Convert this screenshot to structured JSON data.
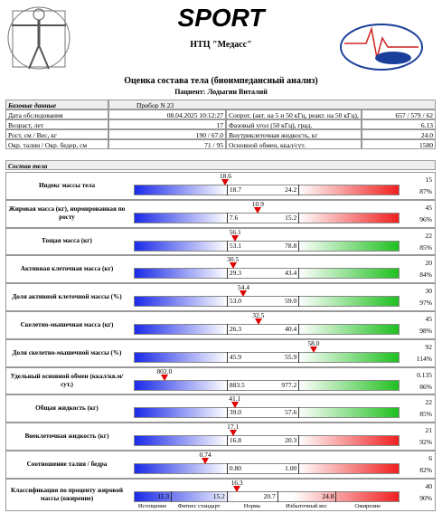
{
  "header": {
    "brand": "SPORT",
    "company": "НТЦ \"Медасс\"",
    "title": "Оценка состава тела (биоимпедансный анализ)",
    "patient": "Пациент: Лодыгин Виталий"
  },
  "base": {
    "title": "Базовые данные",
    "device": "Прибор N 23",
    "rows": [
      [
        "Дата обследования",
        "08.04.2025 10:12:27",
        "Сопрот. (акт. на 5 и 50 кГц, реакт. на 50 кГц), Ом",
        "657 / 579 / 62"
      ],
      [
        "Возраст, лет",
        "17",
        "Фазовый угол (50 кГц), град.",
        "6.13"
      ],
      [
        "Рост, см / Вес, кг",
        "190 / 67.0",
        "Внутриклеточная жидкость, кг",
        "24.0"
      ],
      [
        "Окр. талии / Окр. бедер, см",
        "71 / 95",
        "Основной обмен, ккал/сут.",
        "1580"
      ]
    ]
  },
  "composition": {
    "title": "Состав тела",
    "rows": [
      {
        "label": "Индекс массы тела",
        "value": "18.6",
        "low": "18.7",
        "high": "24.2",
        "top": "15",
        "bottom": "87%",
        "color": "#f02020"
      },
      {
        "label": "Жировая масса (кг), нормированная по росту",
        "value": "10.9",
        "low": "7.6",
        "high": "15.2",
        "top": "45",
        "bottom": "96%",
        "color": "#f02020"
      },
      {
        "label": "Тощая масса (кг)",
        "value": "56.1",
        "low": "53.1",
        "high": "78.8",
        "top": "22",
        "bottom": "85%",
        "color": "#20c020"
      },
      {
        "label": "Активная клеточная масса (кг)",
        "value": "30.5",
        "low": "29.3",
        "high": "43.4",
        "top": "20",
        "bottom": "84%",
        "color": "#20c020"
      },
      {
        "label": "Доля активной клеточной массы (%)",
        "value": "54.4",
        "low": "53.0",
        "high": "59.0",
        "top": "30",
        "bottom": "97%",
        "color": "#20c020"
      },
      {
        "label": "Скелетно-мышечная масса (кг)",
        "value": "32.5",
        "low": "26.3",
        "high": "40.4",
        "top": "45",
        "bottom": "98%",
        "color": "#20c020"
      },
      {
        "label": "Доля скелетно-мышечной массы (%)",
        "value": "58.0",
        "low": "45.9",
        "high": "55.9",
        "top": "92",
        "bottom": "114%",
        "color": "#20c020"
      },
      {
        "label": "Удельный основной обмен (ккал/кв.м/сут.)",
        "value": "802.0",
        "low": "883.5",
        "high": "977.2",
        "top": "0.135",
        "bottom": "86%",
        "color": "#20c020"
      },
      {
        "label": "Общая жидкость (кг)",
        "value": "41.1",
        "low": "39.0",
        "high": "57.6",
        "top": "22",
        "bottom": "85%",
        "color": "#20c020"
      },
      {
        "label": "Внеклеточная жидкость (кг)",
        "value": "17.1",
        "low": "16.8",
        "high": "20.3",
        "top": "21",
        "bottom": "92%",
        "color": "#f02020"
      },
      {
        "label": "Соотношение талия / бедра",
        "value": "0.74",
        "low": "0.80",
        "high": "1.00",
        "top": "6",
        "bottom": "82%",
        "color": "#f02020"
      }
    ],
    "classification": {
      "label": "Классификация по проценту жировой массы (ожирение)",
      "value": "16.3",
      "thresholds": [
        "11.3",
        "15.2",
        "20.7",
        "24.8"
      ],
      "classes": [
        "Истощение",
        "Фитнес стандарт",
        "Норма",
        "Избыточный вес",
        "Ожирение"
      ],
      "top": "40",
      "bottom": "90%"
    }
  }
}
